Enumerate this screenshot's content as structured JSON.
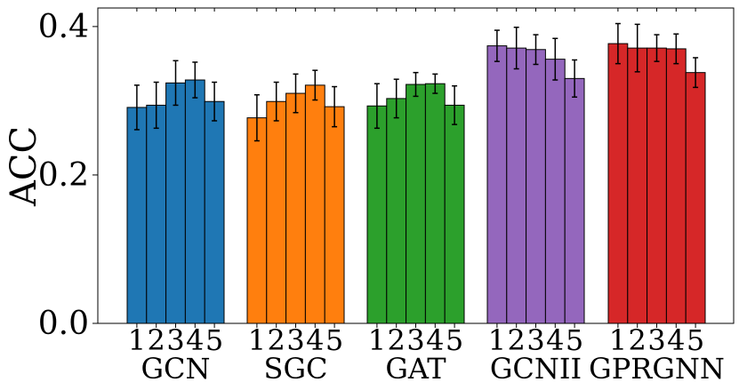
{
  "chart_data": {
    "type": "bar",
    "ylabel": "ACC",
    "xlabel": "",
    "ylim": [
      0,
      0.425
    ],
    "yticks": [
      0.0,
      0.2,
      0.4
    ],
    "ytick_labels": [
      "0.0",
      "0.2",
      "0.4"
    ],
    "sub_labels": [
      "1",
      "2",
      "3",
      "4",
      "5"
    ],
    "groups": [
      {
        "name": "GCN",
        "color": "#1f77b4",
        "values": [
          0.291,
          0.294,
          0.324,
          0.328,
          0.299
        ],
        "errors": [
          0.03,
          0.031,
          0.03,
          0.024,
          0.026
        ]
      },
      {
        "name": "SGC",
        "color": "#ff7f0e",
        "values": [
          0.277,
          0.299,
          0.31,
          0.321,
          0.292
        ],
        "errors": [
          0.031,
          0.026,
          0.026,
          0.02,
          0.027
        ]
      },
      {
        "name": "GAT",
        "color": "#2ca02c",
        "values": [
          0.293,
          0.303,
          0.322,
          0.323,
          0.294
        ],
        "errors": [
          0.03,
          0.026,
          0.016,
          0.013,
          0.026
        ]
      },
      {
        "name": "GCNII",
        "color": "#9467bd",
        "values": [
          0.374,
          0.371,
          0.369,
          0.356,
          0.33
        ],
        "errors": [
          0.021,
          0.028,
          0.02,
          0.028,
          0.025
        ]
      },
      {
        "name": "GPRGNN",
        "color": "#d62728",
        "values": [
          0.377,
          0.371,
          0.371,
          0.37,
          0.338
        ],
        "errors": [
          0.027,
          0.032,
          0.018,
          0.02,
          0.02
        ]
      }
    ]
  }
}
